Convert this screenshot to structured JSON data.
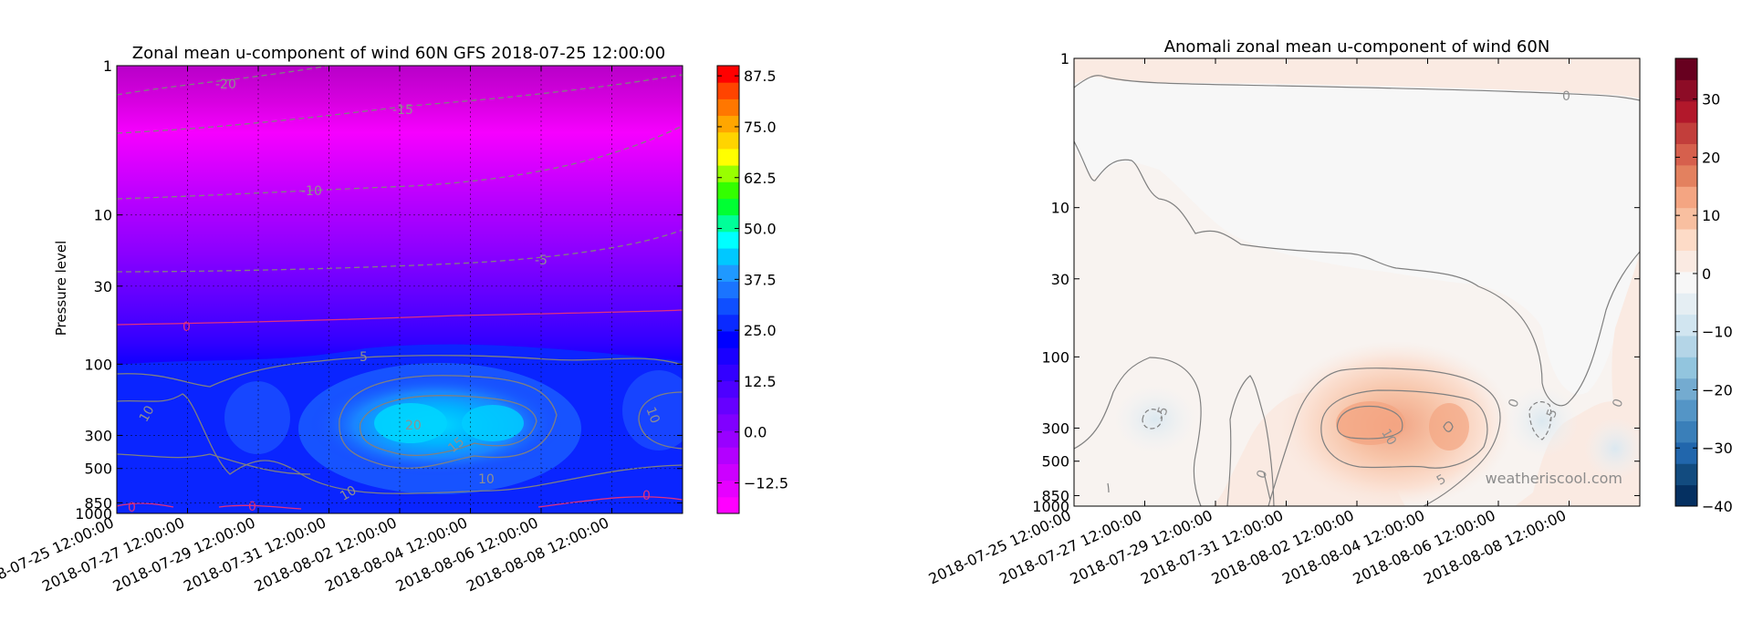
{
  "colors": {
    "left_colormap": [
      "#ff00ff",
      "#e600ff",
      "#cc00ff",
      "#b300ff",
      "#9900ff",
      "#8000ff",
      "#6600ff",
      "#4d00ff",
      "#3300ff",
      "#1a00ff",
      "#0000ff",
      "#0a2aff",
      "#0f4fff",
      "#1a74ff",
      "#1f99ff",
      "#00c8ff",
      "#00ffff",
      "#00ff99",
      "#00ff33",
      "#33ff00",
      "#99ff00",
      "#ffff00",
      "#ffd400",
      "#ffa600",
      "#ff7700",
      "#ff4400",
      "#ff0000"
    ],
    "right_colormap": [
      "#053061",
      "#124b7f",
      "#2166ac",
      "#3a7fb9",
      "#5495c6",
      "#74abd0",
      "#92c5de",
      "#b4d5e7",
      "#d1e5f0",
      "#e5eef3",
      "#f7f7f7",
      "#faeae2",
      "#fddbc7",
      "#f8bfa0",
      "#f4a582",
      "#e3815f",
      "#d6604d",
      "#c23e3b",
      "#b2182b",
      "#8d0c26",
      "#67001f"
    ],
    "contour_line": "#808080",
    "contour_zero_left": "#e0307f"
  },
  "chart_data": [
    {
      "type": "heatmap",
      "title": "Zonal mean u-component of wind 60N GFS 2018-07-25 12:00:00",
      "xlabel": "",
      "ylabel": "Pressure level",
      "x_ticks": [
        "2018-07-25 12:00:00",
        "2018-07-27 12:00:00",
        "2018-07-29 12:00:00",
        "2018-07-31 12:00:00",
        "2018-08-02 12:00:00",
        "2018-08-04 12:00:00",
        "2018-08-06 12:00:00",
        "2018-08-08 12:00:00"
      ],
      "x_range_days": [
        0,
        16
      ],
      "y_ticks": [
        "1",
        "10",
        "30",
        "100",
        "300",
        "500",
        "850",
        "1000"
      ],
      "y_scale": "log",
      "y_range": [
        1000,
        1
      ],
      "grid": true,
      "colorbar_ticks": [
        "87.5",
        "75.0",
        "62.5",
        "50.0",
        "37.5",
        "25.0",
        "12.5",
        "0.0",
        "−12.5"
      ],
      "colorbar_range": [
        -20,
        90
      ],
      "contour_labels": [
        "-20",
        "-15",
        "-10",
        "-5",
        "0",
        "5",
        "10",
        "10",
        "10",
        "15",
        "20",
        "10",
        "0",
        "0",
        "0"
      ],
      "bands_top_to_bottom": [
        {
          "pressure_top": 1,
          "pressure_bottom": 2,
          "value": -20
        },
        {
          "pressure_top": 2,
          "pressure_bottom": 6,
          "value": -15
        },
        {
          "pressure_top": 6,
          "pressure_bottom": 15,
          "value": -10
        },
        {
          "pressure_top": 15,
          "pressure_bottom": 40,
          "value": -5
        },
        {
          "pressure_top": 40,
          "pressure_bottom": 80,
          "value": 0
        },
        {
          "pressure_top": 80,
          "pressure_bottom": 1000,
          "value": 5
        }
      ],
      "core": {
        "center_day": 9,
        "center_pressure": 300,
        "max_value": 20
      }
    },
    {
      "type": "heatmap",
      "title": "Anomali zonal mean u-component of wind 60N",
      "xlabel": "",
      "ylabel": "",
      "x_ticks": [
        "2018-07-25 12:00:00",
        "2018-07-27 12:00:00",
        "2018-07-29 12:00:00",
        "2018-07-31 12:00:00",
        "2018-08-02 12:00:00",
        "2018-08-04 12:00:00",
        "2018-08-06 12:00:00",
        "2018-08-08 12:00:00"
      ],
      "x_range_days": [
        0,
        16
      ],
      "y_ticks": [
        "1",
        "10",
        "30",
        "100",
        "300",
        "500",
        "850",
        "1000"
      ],
      "y_scale": "log",
      "y_range": [
        1000,
        1
      ],
      "grid": false,
      "colorbar_ticks": [
        "30",
        "20",
        "10",
        "0",
        "−10",
        "−20",
        "−30",
        "−40"
      ],
      "colorbar_range": [
        -40,
        37
      ],
      "contour_labels": [
        "0",
        "-5",
        "10",
        "5",
        "0",
        "0",
        "-5",
        "0"
      ],
      "watermark": "weatheriscool.com",
      "anomalies": [
        {
          "center_day": 9.5,
          "center_pressure": 300,
          "value": 10
        },
        {
          "center_day": 2.5,
          "center_pressure": 300,
          "value": -5
        },
        {
          "center_day": 13.5,
          "center_pressure": 300,
          "value": -5
        }
      ]
    }
  ]
}
